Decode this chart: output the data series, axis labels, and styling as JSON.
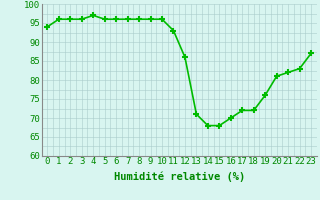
{
  "x": [
    0,
    1,
    2,
    3,
    4,
    5,
    6,
    7,
    8,
    9,
    10,
    11,
    12,
    13,
    14,
    15,
    16,
    17,
    18,
    19,
    20,
    21,
    22,
    23
  ],
  "y": [
    94,
    96,
    96,
    96,
    97,
    96,
    96,
    96,
    96,
    96,
    96,
    93,
    86,
    71,
    68,
    68,
    70,
    72,
    72,
    76,
    81,
    82,
    83,
    87
  ],
  "line_color": "#00bb00",
  "marker": "+",
  "marker_size": 5,
  "marker_lw": 1.5,
  "bg_color": "#d8f5f0",
  "grid_color": "#aacccc",
  "xlabel": "Humidité relative (%)",
  "xlabel_color": "#008800",
  "xlabel_fontsize": 7.5,
  "tick_color": "#008800",
  "tick_fontsize": 6.5,
  "ylim": [
    60,
    100
  ],
  "xlim": [
    -0.5,
    23.5
  ],
  "yticks": [
    60,
    65,
    70,
    75,
    80,
    85,
    90,
    95,
    100
  ],
  "xticks": [
    0,
    1,
    2,
    3,
    4,
    5,
    6,
    7,
    8,
    9,
    10,
    11,
    12,
    13,
    14,
    15,
    16,
    17,
    18,
    19,
    20,
    21,
    22,
    23
  ],
  "line_width": 1.2
}
